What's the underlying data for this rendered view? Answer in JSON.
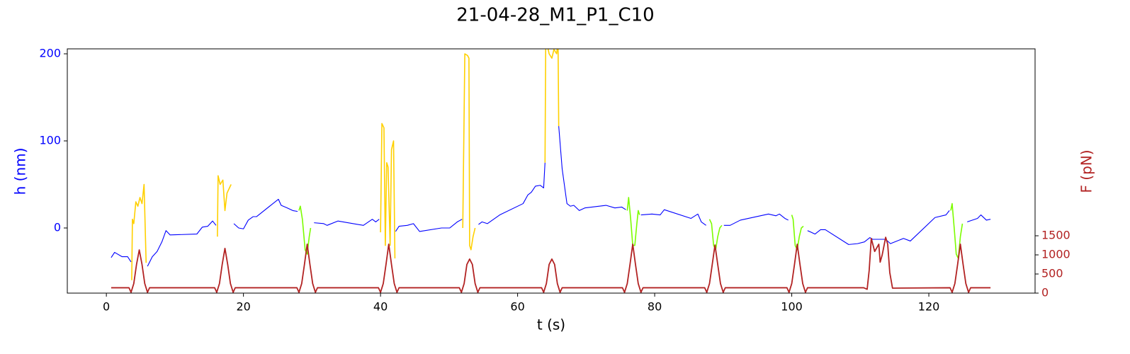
{
  "chart_data": {
    "type": "line",
    "title": "21-04-28_M1_P1_C10",
    "xlabel": "t (s)",
    "ylabel": "h (nm)",
    "y2label": "F (pN)",
    "xlim": [
      -5.7,
      135.5
    ],
    "xticks": [
      0,
      20,
      40,
      60,
      80,
      100,
      120
    ],
    "ylim": [
      -74.8,
      205.7
    ],
    "yticks": [
      0,
      100,
      200
    ],
    "y2lim": [
      0,
      6390
    ],
    "y2ticks": [
      0,
      500,
      1000,
      1500
    ],
    "ylabel_color": "#0000ff",
    "y2label_color": "#b22222",
    "series": [
      {
        "color": "#0000ff",
        "x": [
          0.7,
          1.2,
          2.3,
          3.1,
          3.6,
          3.7,
          6.0,
          6.7,
          7.4,
          8.1,
          8.7,
          9.3,
          13.2,
          14,
          14.8,
          15.5,
          16.0,
          16.2,
          18.6,
          19.3,
          20,
          20.7,
          21.4,
          21.9,
          25.1,
          25.5,
          26.4,
          27.2,
          27.9,
          28.5,
          30.3,
          31.7,
          32.2,
          33.8,
          37.5,
          38.8,
          39.3,
          39.8,
          41,
          42.2,
          42.7,
          43.9,
          44.8,
          45.7,
          48.9,
          50.1,
          51.2,
          51.9,
          53,
          54.3,
          54.8,
          55.6,
          57.4,
          60.8,
          61.5,
          62,
          62.6,
          63.3,
          63.8,
          64,
          65,
          66,
          66.5,
          67.2,
          67.7,
          68.2,
          69,
          69.8,
          72.9,
          74.2,
          75.2,
          75.8,
          77,
          78,
          79.6,
          80.8,
          81.4,
          85.3,
          86.3,
          86.8,
          87.5,
          89,
          90.1,
          91,
          92.5,
          96.6,
          97.7,
          98.2,
          99,
          99.5,
          101,
          102.3,
          103.4,
          104.2,
          104.9,
          108.3,
          109.6,
          110.6,
          111.4,
          111.8,
          113.7,
          114.4,
          116.3,
          117.3,
          120.9,
          122.5,
          123,
          124,
          125.6,
          127.1,
          127.6,
          128.4,
          129
        ],
        "values": [
          -34,
          -28,
          -33,
          -33,
          -39,
          null,
          -44,
          -33,
          -27,
          -16,
          -3,
          -8,
          -7,
          1,
          2,
          8,
          3,
          null,
          5,
          0,
          -1,
          9,
          13,
          13,
          33,
          26,
          23,
          20,
          19,
          null,
          6,
          5,
          3,
          8,
          3,
          10,
          7,
          10,
          null,
          -4,
          2,
          3,
          5,
          -4,
          0,
          0,
          7,
          10,
          null,
          4,
          7,
          5,
          15,
          28,
          38,
          41,
          48,
          49,
          46,
          75,
          null,
          117,
          68,
          28,
          25,
          26,
          20,
          23,
          26,
          23,
          24,
          21,
          null,
          15,
          16,
          15,
          21,
          11,
          16,
          7,
          3,
          null,
          3,
          3,
          9,
          16,
          14,
          16,
          11,
          9,
          null,
          -3,
          -7,
          -2,
          -2,
          -19,
          -18,
          -16,
          -11,
          -13,
          -13,
          -18,
          -12,
          -15,
          12,
          15,
          20,
          null,
          7,
          11,
          15,
          9,
          10
        ]
      },
      {
        "color": "#ffd000",
        "x": [
          3.7,
          3.8,
          4.0,
          4.3,
          4.6,
          4.9,
          5.2,
          5.5,
          5.8,
          10,
          16.2,
          16.3,
          16.6,
          17,
          17.3,
          17.6,
          17.9,
          18.2,
          30,
          40,
          40.2,
          40.5,
          40.7,
          40.9,
          41.1,
          41.4,
          41.6,
          41.9,
          42.1,
          47,
          52,
          52.3,
          52.7,
          52.9,
          53,
          53.2,
          53.5,
          53.8,
          60,
          64,
          64.1,
          64.2,
          64.6,
          65,
          65.3,
          65.7,
          65.9,
          66
        ],
        "values": [
          -60,
          10,
          5,
          30,
          25,
          35,
          28,
          50,
          -40,
          null,
          -10,
          60,
          50,
          55,
          20,
          40,
          45,
          50,
          null,
          -5,
          120,
          115,
          -20,
          75,
          70,
          -20,
          90,
          100,
          -35,
          null,
          0,
          200,
          198,
          195,
          -20,
          -25,
          -10,
          0,
          null,
          75,
          210,
          215,
          200,
          195,
          205,
          200,
          215,
          117
        ]
      },
      {
        "color": "#7cfc00",
        "x": [
          28.1,
          28.3,
          28.6,
          29,
          29.3,
          29.6,
          29.8,
          50,
          76,
          76.2,
          76.5,
          76.8,
          77.1,
          77.4,
          77.6,
          77.8,
          83,
          88,
          88.3,
          88.6,
          88.9,
          89.2,
          89.5,
          89.8,
          95,
          100,
          100.2,
          100.5,
          100.8,
          101.1,
          101.4,
          101.7,
          110,
          123.2,
          123.4,
          123.7,
          124,
          124.3,
          124.6,
          124.9
        ],
        "values": [
          20,
          25,
          10,
          -25,
          -30,
          -10,
          0,
          null,
          20,
          35,
          10,
          -20,
          -20,
          5,
          20,
          15,
          null,
          10,
          5,
          -20,
          -25,
          -10,
          0,
          3,
          null,
          15,
          10,
          -20,
          -25,
          -10,
          0,
          2,
          null,
          20,
          28,
          0,
          -30,
          -35,
          -10,
          5
        ]
      },
      {
        "color": "#b22222",
        "axis": "y2",
        "x": [
          0.7,
          3.3,
          3.6,
          4.0,
          4.4,
          4.8,
          5.2,
          5.6,
          6.0,
          6.3,
          15.8,
          16.1,
          16.5,
          16.9,
          17.3,
          17.7,
          18.1,
          18.5,
          18.8,
          27.8,
          28.1,
          28.5,
          28.9,
          29.3,
          29.7,
          30.1,
          30.5,
          30.8,
          39.7,
          40.0,
          40.4,
          40.8,
          41.2,
          41.6,
          42.0,
          42.4,
          42.7,
          51.5,
          51.8,
          52.2,
          52.6,
          53.0,
          53.4,
          53.8,
          54.2,
          54.5,
          63.5,
          63.8,
          64.2,
          64.6,
          65.0,
          65.4,
          65.8,
          66.2,
          66.5,
          75.3,
          75.6,
          76.0,
          76.4,
          76.8,
          77.2,
          77.6,
          78.0,
          78.3,
          87.3,
          87.6,
          88.0,
          88.4,
          88.8,
          89.2,
          89.6,
          90.0,
          90.3,
          99.3,
          99.6,
          100.0,
          100.4,
          100.8,
          101.2,
          101.6,
          102.0,
          102.3,
          110.5,
          111.0,
          111.3,
          111.6,
          112.1,
          112.7,
          112.9,
          113.2,
          113.7,
          114.0,
          114.3,
          114.7,
          123.1,
          123.4,
          123.8,
          124.2,
          124.6,
          125.0,
          125.4,
          125.8,
          126.1,
          129
        ],
        "values": [
          140,
          140,
          20,
          250,
          750,
          1130,
          750,
          250,
          20,
          140,
          140,
          20,
          250,
          750,
          1170,
          750,
          250,
          20,
          140,
          140,
          20,
          250,
          750,
          1280,
          750,
          250,
          20,
          140,
          140,
          20,
          250,
          750,
          1280,
          750,
          250,
          20,
          140,
          140,
          20,
          250,
          750,
          890,
          750,
          250,
          20,
          140,
          140,
          20,
          250,
          750,
          890,
          750,
          250,
          20,
          140,
          140,
          20,
          250,
          750,
          1280,
          750,
          250,
          20,
          140,
          140,
          20,
          250,
          750,
          1260,
          750,
          250,
          20,
          140,
          140,
          20,
          250,
          750,
          1280,
          750,
          250,
          20,
          140,
          140,
          100,
          600,
          1430,
          1090,
          1280,
          810,
          1000,
          1460,
          1280,
          540,
          130,
          140,
          20,
          250,
          750,
          1280,
          750,
          250,
          20,
          140,
          140
        ]
      }
    ]
  }
}
